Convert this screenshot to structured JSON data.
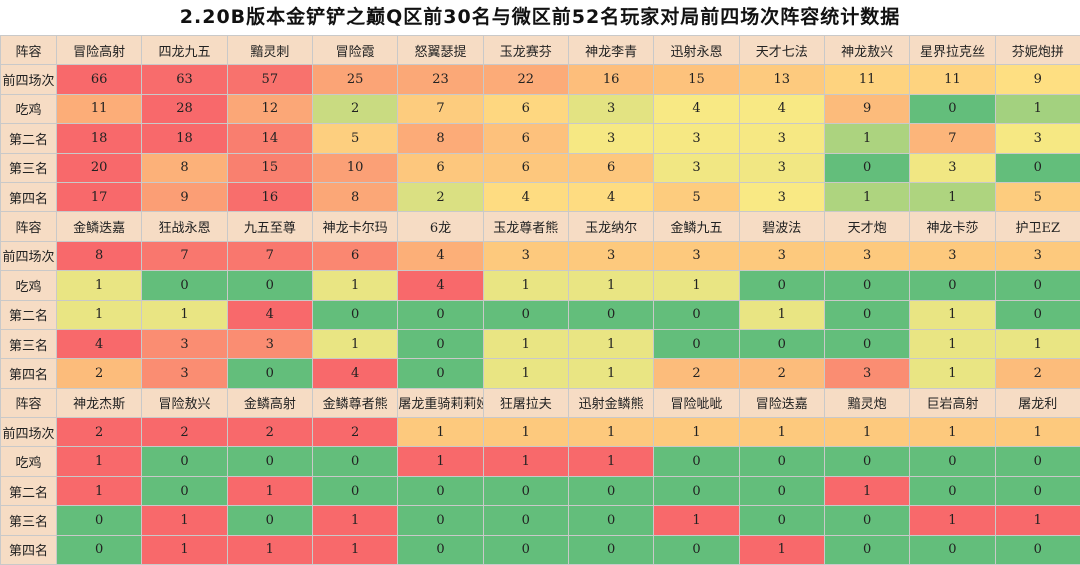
{
  "title": "2.20B版本金铲铲之巅Q区前30名与微区前52名玩家对局前四场次阵容统计数据",
  "row_labels": {
    "header": "阵容",
    "top4": "前四场次",
    "win": "吃鸡",
    "second": "第二名",
    "third": "第三名",
    "fourth": "第四名"
  },
  "colors": {
    "header_bg": "#f6dcc4",
    "scale": [
      "#63be7b",
      "#ffeb84",
      "#f8696b"
    ]
  },
  "blocks": [
    {
      "lineups": [
        "冒险高射",
        "四龙九五",
        "黯灵刺",
        "冒险霞",
        "怒翼瑟提",
        "玉龙赛芬",
        "神龙李青",
        "迅射永恩",
        "天才七法",
        "神龙敖兴",
        "星界拉克丝",
        "芬妮炮拼"
      ],
      "top4": [
        66,
        63,
        57,
        25,
        23,
        22,
        16,
        15,
        13,
        11,
        11,
        9
      ],
      "win": [
        11,
        28,
        12,
        2,
        7,
        6,
        3,
        4,
        4,
        9,
        0,
        1
      ],
      "second": [
        18,
        18,
        14,
        5,
        8,
        6,
        3,
        3,
        3,
        1,
        7,
        3
      ],
      "third": [
        20,
        8,
        15,
        10,
        6,
        6,
        6,
        3,
        3,
        0,
        3,
        0
      ],
      "fourth": [
        17,
        9,
        16,
        8,
        2,
        4,
        4,
        5,
        3,
        1,
        1,
        5
      ]
    },
    {
      "lineups": [
        "金鳞迭嘉",
        "狂战永恩",
        "九五至尊",
        "神龙卡尔玛",
        "6龙",
        "玉龙尊者熊",
        "玉龙纳尔",
        "金鳞九五",
        "碧波法",
        "天才炮",
        "神龙卡莎",
        "护卫EZ"
      ],
      "top4": [
        8,
        7,
        7,
        6,
        4,
        3,
        3,
        3,
        3,
        3,
        3,
        3
      ],
      "win": [
        1,
        0,
        0,
        1,
        4,
        1,
        1,
        1,
        0,
        0,
        0,
        0
      ],
      "second": [
        1,
        1,
        4,
        0,
        0,
        0,
        0,
        0,
        1,
        0,
        1,
        0
      ],
      "third": [
        4,
        3,
        3,
        1,
        0,
        1,
        1,
        0,
        0,
        0,
        1,
        1
      ],
      "fourth": [
        2,
        3,
        0,
        4,
        0,
        1,
        1,
        2,
        2,
        3,
        1,
        2
      ]
    },
    {
      "lineups": [
        "神龙杰斯",
        "冒险敖兴",
        "金鳞高射",
        "金鳞尊者熊",
        "屠龙重骑莉莉娅",
        "狂屠拉夫",
        "迅射金鳞熊",
        "冒险呲呲",
        "冒险迭嘉",
        "黯灵炮",
        "巨岩高射",
        "屠龙利"
      ],
      "top4": [
        2,
        2,
        2,
        2,
        1,
        1,
        1,
        1,
        1,
        1,
        1,
        1
      ],
      "win": [
        1,
        0,
        0,
        0,
        1,
        1,
        1,
        0,
        0,
        0,
        0,
        0
      ],
      "second": [
        1,
        0,
        1,
        0,
        0,
        0,
        0,
        0,
        0,
        1,
        0,
        0
      ],
      "third": [
        0,
        1,
        0,
        1,
        0,
        0,
        0,
        1,
        0,
        0,
        1,
        1
      ],
      "fourth": [
        0,
        1,
        1,
        1,
        0,
        0,
        0,
        0,
        1,
        0,
        0,
        0
      ]
    }
  ]
}
